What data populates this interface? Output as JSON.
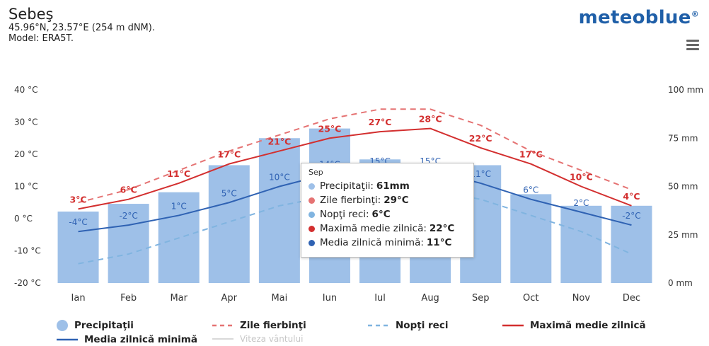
{
  "header": {
    "location": "Sebeş",
    "coords": "45.96°N, 23.57°E (254 m dNM).",
    "model": "Model: ERA5T.",
    "brand": "meteoblue",
    "brand_mark": "®"
  },
  "chart_data": {
    "type": "bar+line",
    "categories": [
      "Ian",
      "Feb",
      "Mar",
      "Apr",
      "Mai",
      "Iun",
      "Iul",
      "Aug",
      "Sep",
      "Oct",
      "Nov",
      "Dec"
    ],
    "y_left": {
      "ticks": [
        "40 °C",
        "30 °C",
        "20 °C",
        "10 °C",
        "0 °C",
        "-10 °C",
        "-20 °C"
      ],
      "range": [
        -20,
        40
      ]
    },
    "y_right": {
      "ticks": [
        "100 mm",
        "75 mm",
        "50 mm",
        "25 mm",
        "0 mm"
      ],
      "range": [
        0,
        100
      ]
    },
    "series": [
      {
        "name": "Precipitaţii",
        "type": "bar",
        "color": "#9ec0e8",
        "values": [
          37,
          41,
          47,
          61,
          75,
          80,
          64,
          61,
          61,
          46,
          40,
          40
        ]
      },
      {
        "name": "Zile fierbinţi",
        "type": "line",
        "style": "dashed",
        "color": "#e57373",
        "values": [
          5,
          9,
          15,
          21,
          26,
          31,
          34,
          34,
          29,
          21,
          15,
          9
        ]
      },
      {
        "name": "Nopţi reci",
        "type": "line",
        "style": "dashed",
        "color": "#80b4e0",
        "values": [
          -14,
          -11,
          -6,
          -1,
          4,
          7,
          9,
          9,
          6,
          1,
          -4,
          -11
        ]
      },
      {
        "name": "Maximă medie zilnică",
        "type": "line",
        "style": "solid",
        "color": "#d32f2f",
        "values": [
          3,
          6,
          11,
          17,
          21,
          25,
          27,
          28,
          22,
          17,
          10,
          4
        ]
      },
      {
        "name": "Media zilnică minimă",
        "type": "line",
        "style": "solid",
        "color": "#2f62b3",
        "values": [
          -4,
          -2,
          1,
          5,
          10,
          14,
          15,
          15,
          11,
          6,
          2,
          -2
        ]
      }
    ],
    "max_labels": [
      "3°C",
      "6°C",
      "11°C",
      "17°C",
      "21°C",
      "25°C",
      "27°C",
      "28°C",
      "22°C",
      "17°C",
      "10°C",
      "4°C"
    ],
    "min_labels": [
      "-4°C",
      "-2°C",
      "1°C",
      "5°C",
      "10°C",
      "14°C",
      "15°C",
      "15°C",
      "11°C",
      "6°C",
      "2°C",
      "-2°C"
    ]
  },
  "tooltip": {
    "title": "Sep",
    "rows": [
      {
        "label": "Precipitaţii:",
        "value": "61mm",
        "color": "#9ec0e8"
      },
      {
        "label": "Zile fierbinţi:",
        "value": "29°C",
        "color": "#e57373"
      },
      {
        "label": "Nopţi reci:",
        "value": "6°C",
        "color": "#80b4e0"
      },
      {
        "label": "Maximă medie zilnică:",
        "value": "22°C",
        "color": "#d32f2f"
      },
      {
        "label": "Media zilnică minimă:",
        "value": "11°C",
        "color": "#2f62b3"
      }
    ]
  },
  "legend": {
    "precip": "Precipitaţii",
    "hot": "Zile fierbinţi",
    "cold": "Nopţi reci",
    "max": "Maximă medie zilnică",
    "min": "Media zilnică minimă",
    "wind": "Viteza vântului"
  }
}
